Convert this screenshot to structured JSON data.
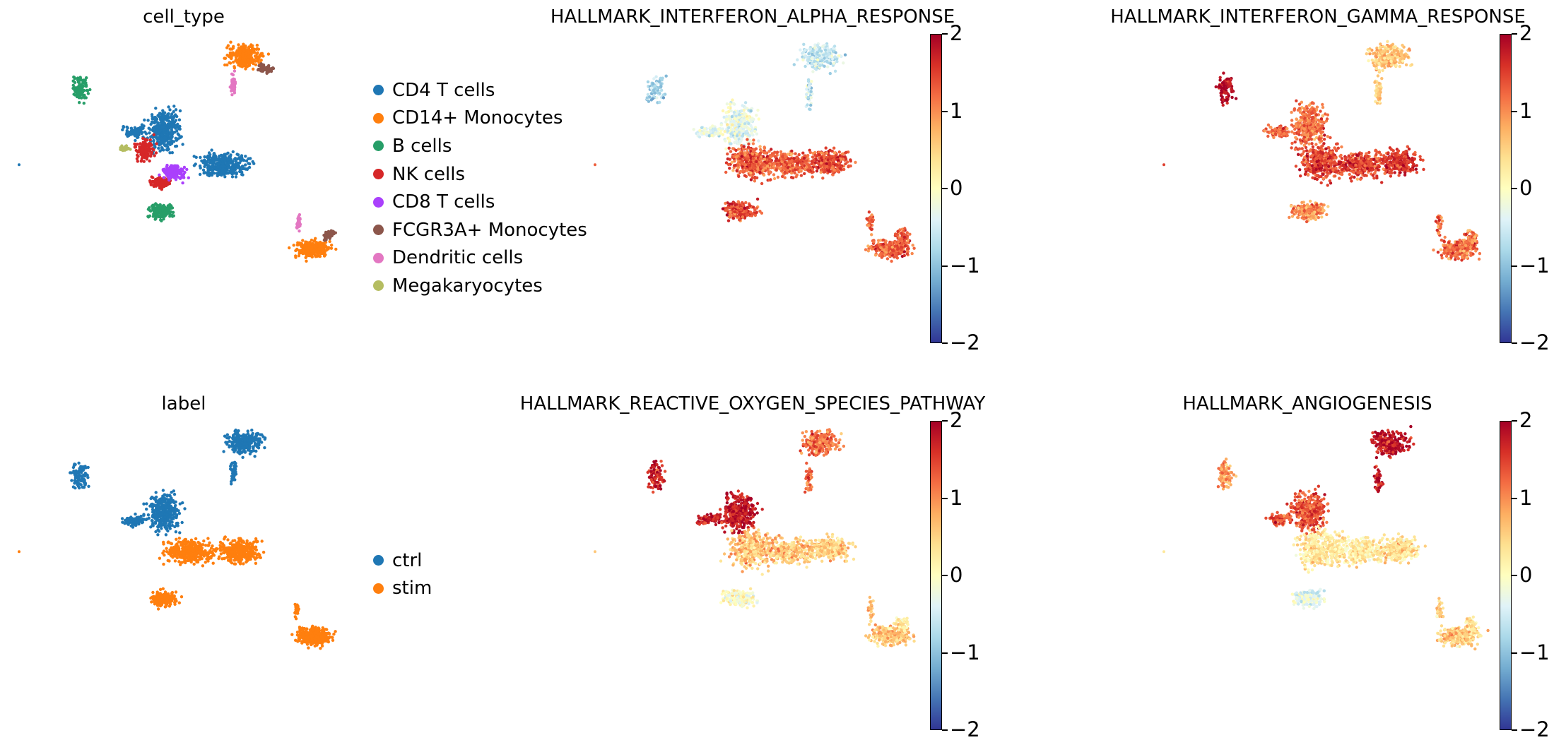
{
  "chart_data": [
    {
      "type": "scatter",
      "title": "cell_type",
      "color_by": "categorical",
      "legend": {
        "placement": "right",
        "entries": [
          {
            "label": "CD4 T cells",
            "color": "#1f77b4"
          },
          {
            "label": "CD14+ Monocytes",
            "color": "#ff7f0e"
          },
          {
            "label": "B cells",
            "color": "#279e68"
          },
          {
            "label": "NK cells",
            "color": "#d62728"
          },
          {
            "label": "CD8 T cells",
            "color": "#aa40fc"
          },
          {
            "label": "FCGR3A+ Monocytes",
            "color": "#8c564b"
          },
          {
            "label": "Dendritic cells",
            "color": "#e377c2"
          },
          {
            "label": "Megakaryocytes",
            "color": "#b5bd61"
          }
        ]
      },
      "clusters": [
        {
          "name": "CD4 T cells",
          "color": "#1f77b4",
          "composition": "single"
        },
        {
          "name": "CD14+ Monocytes",
          "color": "#ff7f0e",
          "composition": "single"
        },
        {
          "name": "B cells",
          "color": "#279e68",
          "composition": "single"
        },
        {
          "name": "NK cells",
          "color": "#d62728",
          "composition": "single"
        },
        {
          "name": "CD8 T cells",
          "color": "#aa40fc",
          "composition": "single"
        },
        {
          "name": "FCGR3A+ Monocytes",
          "color": "#8c564b",
          "composition": "single"
        },
        {
          "name": "Dendritic cells",
          "color": "#e377c2",
          "composition": "single"
        },
        {
          "name": "Megakaryocytes",
          "color": "#b5bd61",
          "composition": "single"
        }
      ]
    },
    {
      "type": "scatter",
      "title": "HALLMARK_INTERFERON_ALPHA_RESPONSE",
      "color_by": "continuous",
      "colormap": "RdYlBu_r",
      "colorbar": {
        "range": [
          -2,
          2
        ],
        "ticks": [
          "2",
          "1",
          "0",
          "−1",
          "−2"
        ]
      },
      "cluster_scores": {
        "top_left_small": -0.8,
        "top_right": -0.6,
        "center_upper": -0.3,
        "center_main": 1.3,
        "right_blob": 1.4,
        "bottom_left": 1.4,
        "bottom_right": 1.3,
        "stim_bottom": 1.4
      }
    },
    {
      "type": "scatter",
      "title": "HALLMARK_INTERFERON_GAMMA_RESPONSE",
      "color_by": "continuous",
      "colormap": "RdYlBu_r",
      "colorbar": {
        "range": [
          -2,
          2
        ],
        "ticks": [
          "2",
          "1",
          "0",
          "−1",
          "−2"
        ]
      },
      "cluster_scores": {
        "top_left_small": 1.9,
        "top_right": 0.6,
        "center_upper": 1.2,
        "center_main": 1.5,
        "right_blob": 1.6,
        "bottom_left": 1.0,
        "bottom_right": 1.2,
        "stim_bottom": 1.1
      }
    },
    {
      "type": "scatter",
      "title": "label",
      "color_by": "categorical",
      "legend": {
        "placement": "right",
        "entries": [
          {
            "label": "ctrl",
            "color": "#1f77b4"
          },
          {
            "label": "stim",
            "color": "#ff7f0e"
          }
        ]
      }
    },
    {
      "type": "scatter",
      "title": "HALLMARK_REACTIVE_OXYGEN_SPECIES_PATHWAY",
      "color_by": "continuous",
      "colormap": "RdYlBu_r",
      "colorbar": {
        "range": [
          -2,
          2
        ],
        "ticks": [
          "2",
          "1",
          "0",
          "−1",
          "−2"
        ]
      },
      "cluster_scores": {
        "top_left_small": 1.7,
        "top_right": 1.2,
        "center_upper": 1.8,
        "center_main": 0.6,
        "right_blob": 0.5,
        "bottom_left": 0.0,
        "bottom_right": 0.6,
        "stim_bottom": 0.3
      }
    },
    {
      "type": "scatter",
      "title": "HALLMARK_ANGIOGENESIS",
      "color_by": "continuous",
      "colormap": "RdYlBu_r",
      "colorbar": {
        "range": [
          -2,
          2
        ],
        "ticks": [
          "2",
          "1",
          "0",
          "−1",
          "−2"
        ]
      },
      "cluster_scores": {
        "top_left_small": 0.9,
        "top_right": 1.8,
        "center_upper": 1.4,
        "center_main": 0.3,
        "right_blob": 0.4,
        "bottom_left": -0.3,
        "bottom_right": 0.6,
        "stim_bottom": 0.4
      }
    }
  ]
}
